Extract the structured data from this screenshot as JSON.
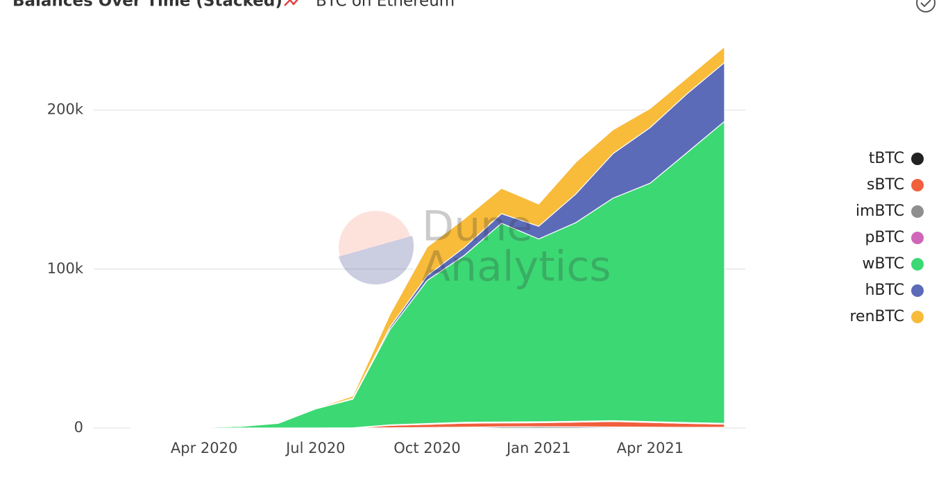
{
  "chart_data": {
    "type": "stacked_area",
    "title": "Balances Over Time (Stacked)",
    "subtitle": "BTC on Ethereum",
    "watermark": [
      "Dune",
      "Analytics"
    ],
    "x": [
      "2020-02",
      "2020-03",
      "2020-04",
      "2020-05",
      "2020-06",
      "2020-07",
      "2020-08",
      "2020-09",
      "2020-10",
      "2020-11",
      "2020-12",
      "2021-01",
      "2021-02",
      "2021-03",
      "2021-04",
      "2021-05",
      "2021-06"
    ],
    "xlim": [
      "2020-02",
      "2021-06"
    ],
    "xticks": [
      {
        "value": "2020-04",
        "label": "Apr 2020"
      },
      {
        "value": "2020-07",
        "label": "Jul 2020"
      },
      {
        "value": "2020-10",
        "label": "Oct 2020"
      },
      {
        "value": "2021-01",
        "label": "Jan 2021"
      },
      {
        "value": "2021-04",
        "label": "Apr 2021"
      }
    ],
    "ylim": [
      0,
      240000
    ],
    "yticks": [
      0,
      {
        "value": 100000,
        "label": "100k"
      },
      {
        "value": 200000,
        "label": "200k"
      }
    ],
    "grid": true,
    "legend": "right",
    "series": [
      {
        "name": "tBTC",
        "color": "#222222",
        "values": [
          0,
          0,
          0,
          0,
          0,
          0,
          0,
          100,
          300,
          500,
          700,
          800,
          700,
          600,
          500,
          400,
          400
        ]
      },
      {
        "name": "sBTC",
        "color": "#f0603d",
        "values": [
          0,
          0,
          0,
          0,
          0,
          0,
          0,
          1500,
          2000,
          2500,
          2500,
          2500,
          3000,
          3500,
          3000,
          2500,
          2000
        ]
      },
      {
        "name": "imBTC",
        "color": "#8f8f8f",
        "values": [
          0,
          0,
          0,
          0,
          0,
          0,
          100,
          300,
          300,
          300,
          300,
          300,
          300,
          300,
          300,
          300,
          300
        ]
      },
      {
        "name": "pBTC",
        "color": "#d066b7",
        "values": [
          0,
          0,
          0,
          0,
          0,
          0,
          0,
          100,
          200,
          300,
          300,
          300,
          200,
          200,
          200,
          200,
          200
        ]
      },
      {
        "name": "wBTC",
        "color": "#3cd874",
        "values": [
          0,
          200,
          500,
          1000,
          3000,
          12000,
          18000,
          60000,
          90000,
          105000,
          125000,
          115000,
          125000,
          140000,
          150000,
          170000,
          190000
        ]
      },
      {
        "name": "hBTC",
        "color": "#5c6bb8",
        "values": [
          0,
          0,
          0,
          0,
          0,
          0,
          500,
          1500,
          3000,
          5000,
          6000,
          8000,
          18000,
          28000,
          35000,
          37000,
          37000
        ]
      },
      {
        "name": "renBTC",
        "color": "#f8bb3a",
        "values": [
          0,
          0,
          0,
          0,
          0,
          300,
          1500,
          8000,
          18000,
          18000,
          16000,
          14000,
          20000,
          15000,
          12000,
          10000,
          10000
        ]
      }
    ]
  }
}
